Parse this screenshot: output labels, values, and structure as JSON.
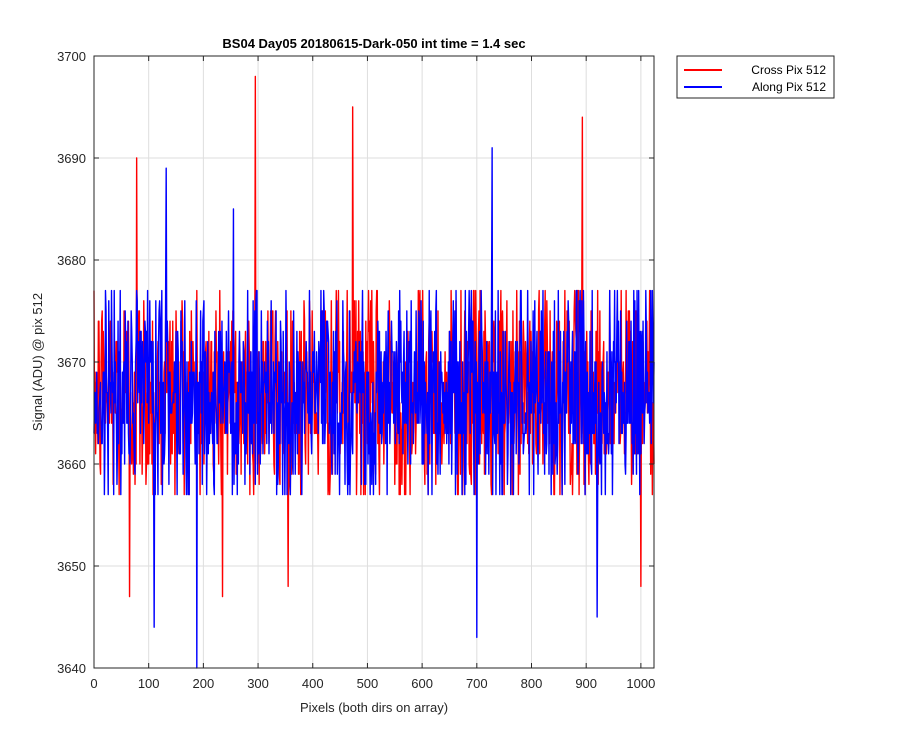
{
  "chart_data": {
    "type": "line",
    "title": "BS04 Day05 20180615-Dark-050 int time = 1.4 sec",
    "xlabel": "Pixels (both dirs on array)",
    "ylabel": "Signal (ADU) @ pix 512",
    "xlim": [
      0,
      1024
    ],
    "ylim": [
      3640,
      3700
    ],
    "xticks": [
      0,
      100,
      200,
      300,
      400,
      500,
      600,
      700,
      800,
      900,
      1000
    ],
    "yticks": [
      3640,
      3650,
      3660,
      3670,
      3680,
      3690,
      3700
    ],
    "xtick_labels": [
      "0",
      "100",
      "200",
      "300",
      "400",
      "500",
      "600",
      "700",
      "800",
      "900",
      "1000"
    ],
    "ytick_labels": [
      "3640",
      "3650",
      "3660",
      "3670",
      "3680",
      "3690",
      "3700"
    ],
    "grid": true,
    "legend_position": "outside-top-right",
    "series": [
      {
        "name": "Cross Pix 512",
        "color": "#ff0000",
        "mean": 3667,
        "noise_std": 5.5,
        "peaks": [
          [
            78,
            3690
          ],
          [
            295,
            3698
          ],
          [
            473,
            3695
          ],
          [
            893,
            3694
          ]
        ],
        "troughs": [
          [
            65,
            3647
          ],
          [
            235,
            3647
          ],
          [
            355,
            3648
          ],
          [
            1000,
            3648
          ]
        ]
      },
      {
        "name": "Along Pix 512",
        "color": "#0000ff",
        "mean": 3667,
        "noise_std": 5.5,
        "peaks": [
          [
            132,
            3689
          ],
          [
            728,
            3691
          ],
          [
            255,
            3685
          ]
        ],
        "troughs": [
          [
            188,
            3640
          ],
          [
            110,
            3644
          ],
          [
            700,
            3643
          ],
          [
            920,
            3645
          ]
        ]
      }
    ]
  }
}
